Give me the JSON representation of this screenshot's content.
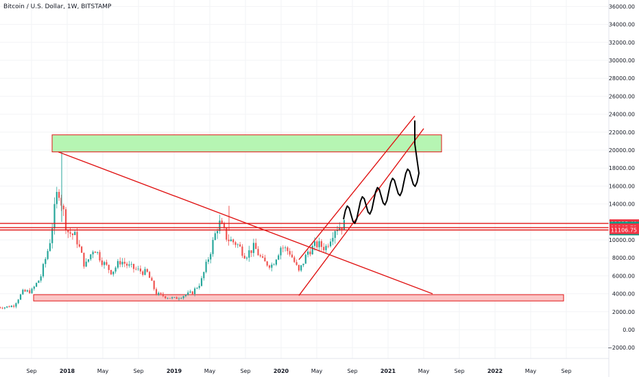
{
  "header": {
    "title": "Bitcoin / U.S. Dollar, 1W, BITSTAMP"
  },
  "colors": {
    "up": "#26a69a",
    "down": "#ef5350",
    "drawing": "#e01414",
    "resistance_fill": "#b6f5b3",
    "support_fill": "#fbc6c6",
    "badge_red": "#f23645",
    "badge_teal": "#089981"
  },
  "chart_data": {
    "type": "candlestick",
    "title": "Bitcoin / U.S. Dollar, 1W, BITSTAMP",
    "y_axis": {
      "ylim": [
        -3000,
        36000
      ],
      "ticks": [
        -2000,
        0,
        2000,
        4000,
        6000,
        8000,
        10000,
        12000,
        14000,
        16000,
        18000,
        20000,
        22000,
        24000,
        26000,
        28000,
        30000,
        32000,
        34000,
        36000
      ],
      "tick_labels": [
        "−2000.00",
        "0.00",
        "2000.00",
        "4000.00",
        "6000.00",
        "8000.00",
        "10000.00",
        "12000.00",
        "14000.00",
        "16000.00",
        "18000.00",
        "20000.00",
        "22000.00",
        "24000.00",
        "26000.00",
        "28000.00",
        "30000.00",
        "32000.00",
        "34000.00",
        "36000.00"
      ]
    },
    "x_axis": {
      "labels": [
        {
          "text": "Sep",
          "date": "2017-09"
        },
        {
          "text": "2018",
          "date": "2018-01"
        },
        {
          "text": "May",
          "date": "2018-05"
        },
        {
          "text": "Sep",
          "date": "2018-09"
        },
        {
          "text": "2019",
          "date": "2019-01"
        },
        {
          "text": "May",
          "date": "2019-05"
        },
        {
          "text": "Sep",
          "date": "2019-09"
        },
        {
          "text": "2020",
          "date": "2020-01"
        },
        {
          "text": "May",
          "date": "2020-05"
        },
        {
          "text": "Sep",
          "date": "2020-09"
        },
        {
          "text": "2021",
          "date": "2021-01"
        },
        {
          "text": "May",
          "date": "2021-05"
        },
        {
          "text": "Sep",
          "date": "2021-09"
        },
        {
          "text": "2022",
          "date": "2022-01"
        },
        {
          "text": "May",
          "date": "2022-05"
        },
        {
          "text": "Sep",
          "date": "2022-09"
        }
      ]
    },
    "price_path": [
      [
        "2017-06",
        2500
      ],
      [
        "2017-07",
        2700
      ],
      [
        "2017-08",
        4200
      ],
      [
        "2017-09",
        4300
      ],
      [
        "2017-10",
        5800
      ],
      [
        "2017-11",
        9500
      ],
      [
        "2017-12",
        16000
      ],
      [
        "2018-01",
        11000
      ],
      [
        "2018-02",
        10300
      ],
      [
        "2018-03",
        7000
      ],
      [
        "2018-04",
        9200
      ],
      [
        "2018-05",
        7500
      ],
      [
        "2018-06",
        6400
      ],
      [
        "2018-07",
        7700
      ],
      [
        "2018-08",
        7000
      ],
      [
        "2018-09",
        6600
      ],
      [
        "2018-10",
        6300
      ],
      [
        "2018-11",
        4000
      ],
      [
        "2018-12",
        3700
      ],
      [
        "2019-01",
        3450
      ],
      [
        "2019-02",
        3800
      ],
      [
        "2019-03",
        4100
      ],
      [
        "2019-04",
        5300
      ],
      [
        "2019-05",
        8500
      ],
      [
        "2019-06",
        12000
      ],
      [
        "2019-07",
        10100
      ],
      [
        "2019-08",
        9600
      ],
      [
        "2019-09",
        8300
      ],
      [
        "2019-10",
        9200
      ],
      [
        "2019-11",
        7500
      ],
      [
        "2019-12",
        7200
      ],
      [
        "2020-01",
        9300
      ],
      [
        "2020-02",
        8600
      ],
      [
        "2020-03",
        6400
      ],
      [
        "2020-04",
        8700
      ],
      [
        "2020-05",
        9500
      ],
      [
        "2020-06",
        9150
      ],
      [
        "2020-07",
        11300
      ],
      [
        "2020-08",
        11700
      ]
    ],
    "annotations": {
      "resistance_zone": {
        "x": [
          "2017-12",
          "2021-07"
        ],
        "y": [
          19800,
          21700
        ]
      },
      "support_zone": {
        "x": [
          "2017-09",
          "2022-05"
        ],
        "y": [
          3200,
          3900
        ]
      },
      "descending_trendline": [
        [
          "2017-12",
          19800
        ],
        [
          "2021-06",
          4000
        ]
      ],
      "upper_channel_line": [
        [
          "2020-03",
          7800
        ],
        [
          "2021-04",
          23800
        ]
      ],
      "lower_channel_line": [
        [
          "2020-03",
          3800
        ],
        [
          "2021-05",
          22400
        ]
      ],
      "horizontal_levels": [
        11835.4,
        11365.73,
        11106.75
      ],
      "projection_path": [
        [
          "2020-08",
          12300
        ],
        [
          "2020-09",
          14700
        ],
        [
          "2020-11",
          16700
        ],
        [
          "2021-01",
          18200
        ],
        [
          "2021-04",
          23300
        ]
      ]
    },
    "price_labels": [
      {
        "text": "11835.40",
        "value": 11835.4,
        "color": "#f23645"
      },
      {
        "text": "11796.06",
        "value": 11796.06,
        "color": "#089981"
      },
      {
        "text": "1d 17h",
        "value": 11580,
        "color": "#089981"
      },
      {
        "text": "11365.73",
        "value": 11365.73,
        "color": "#f23645"
      },
      {
        "text": "11106.75",
        "value": 11106.75,
        "color": "#f23645"
      }
    ]
  }
}
